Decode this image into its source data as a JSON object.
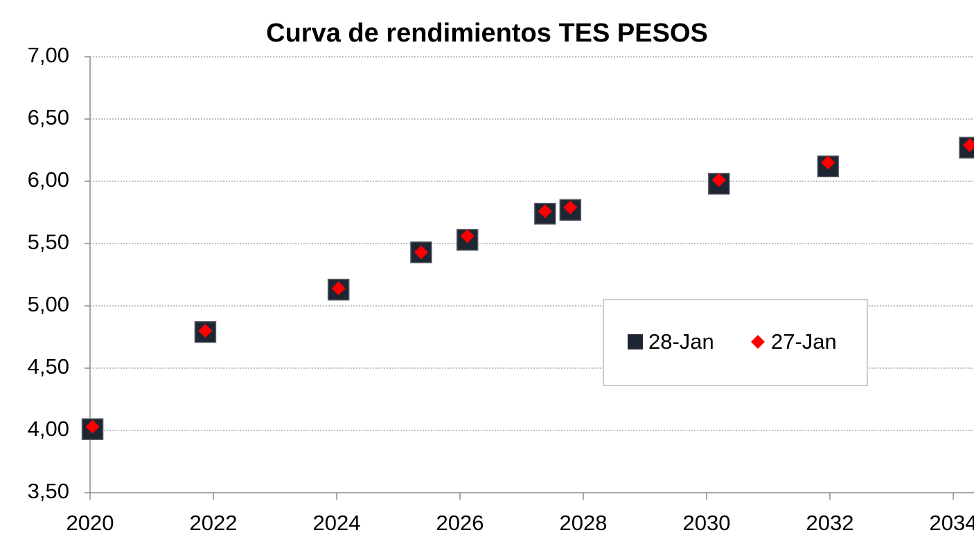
{
  "chart_data": {
    "type": "scatter",
    "title": "Curva de rendimientos TES PESOS",
    "x": [
      2020.04,
      2021.87,
      2024.03,
      2025.37,
      2026.12,
      2027.38,
      2027.79,
      2030.2,
      2031.97,
      2034.27
    ],
    "series": [
      {
        "name": "28-Jan",
        "color": "#1f2633",
        "marker": "square",
        "values": [
          4.01,
          4.79,
          5.13,
          5.43,
          5.53,
          5.74,
          5.77,
          5.98,
          6.12,
          6.27
        ]
      },
      {
        "name": "27-Jan",
        "color": "#ff0000",
        "marker": "diamond",
        "values": [
          4.03,
          4.8,
          5.14,
          5.43,
          5.56,
          5.76,
          5.79,
          6.01,
          6.15,
          6.29
        ]
      }
    ],
    "xlim": [
      2020,
      2034.3
    ],
    "xticks": [
      2020,
      2022,
      2024,
      2026,
      2028,
      2030,
      2032,
      2034
    ],
    "ylim": [
      3.5,
      7
    ],
    "yticks": [
      {
        "value": 3.5,
        "label": "3,50"
      },
      {
        "value": 4,
        "label": "4,00"
      },
      {
        "value": 4.5,
        "label": "4,50"
      },
      {
        "value": 5,
        "label": "5,00"
      },
      {
        "value": 5.5,
        "label": "5,50"
      },
      {
        "value": 6,
        "label": "6,00"
      },
      {
        "value": 6.5,
        "label": "6,50"
      },
      {
        "value": 7,
        "label": "7,00"
      }
    ],
    "grid": true,
    "legend": "center-right"
  }
}
